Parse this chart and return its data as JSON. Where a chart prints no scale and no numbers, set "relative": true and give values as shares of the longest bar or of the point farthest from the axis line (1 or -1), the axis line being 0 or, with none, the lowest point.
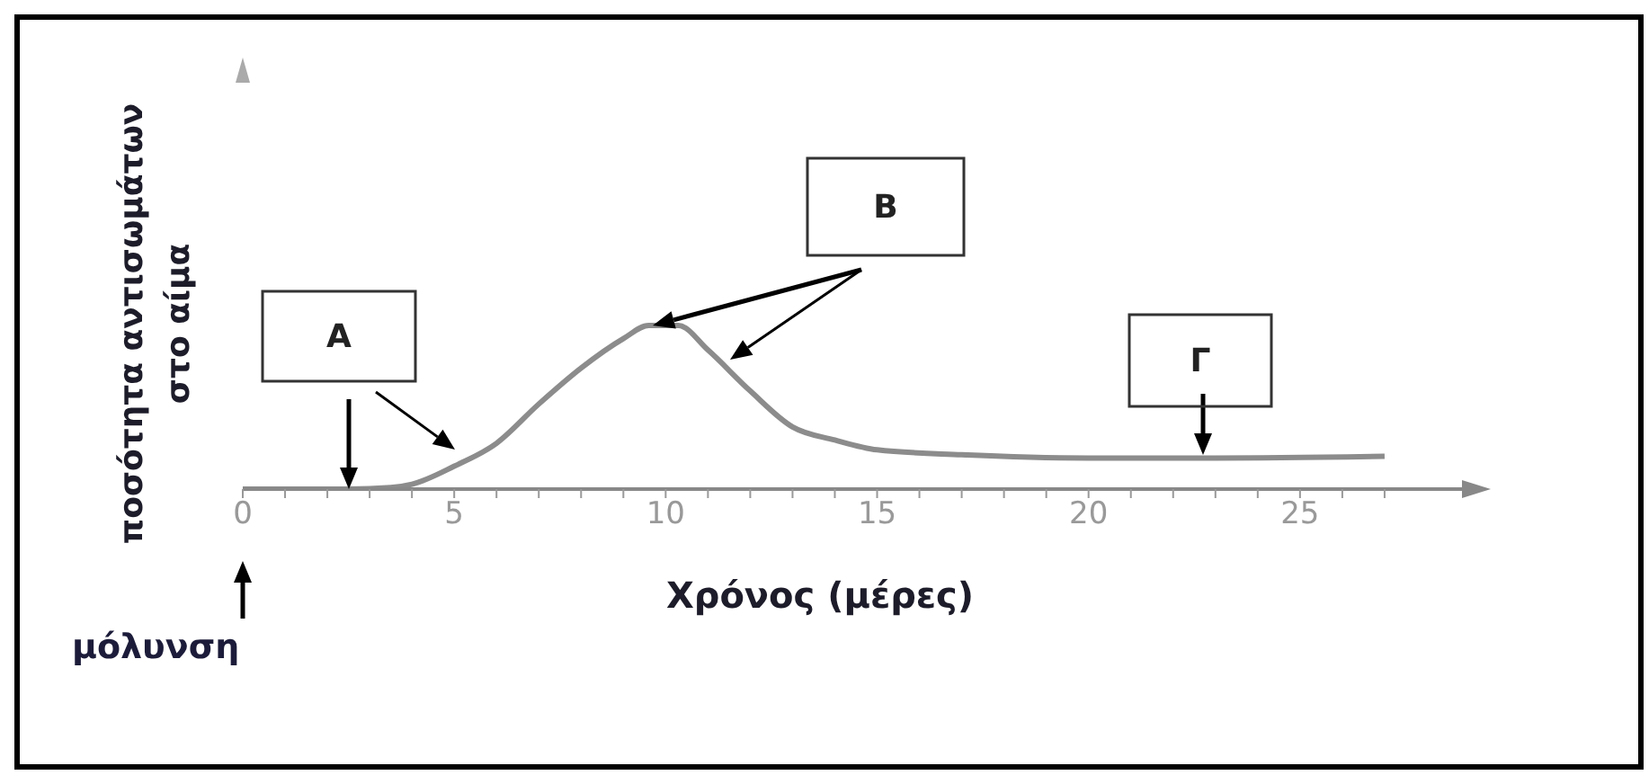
{
  "chart_data": {
    "type": "line",
    "relative": true,
    "marker": "none",
    "line_style": "solid",
    "xlabel": "Χρόνος (μέρες)",
    "ylabel": "ποσότητα αντισωμάτων στο αίμα",
    "xlim": [
      0,
      29
    ],
    "xticks": [
      0,
      {
        "value": 1,
        "label": null
      },
      {
        "value": 2,
        "label": null
      },
      {
        "value": 3,
        "label": null
      },
      {
        "value": 4,
        "label": null
      },
      5,
      {
        "value": 6,
        "label": null
      },
      {
        "value": 7,
        "label": null
      },
      {
        "value": 8,
        "label": null
      },
      {
        "value": 9,
        "label": null
      },
      10,
      {
        "value": 11,
        "label": null
      },
      {
        "value": 12,
        "label": null
      },
      {
        "value": 13,
        "label": null
      },
      {
        "value": 14,
        "label": null
      },
      15,
      {
        "value": 16,
        "label": null
      },
      {
        "value": 17,
        "label": null
      },
      {
        "value": 18,
        "label": null
      },
      {
        "value": 19,
        "label": null
      },
      20,
      {
        "value": 21,
        "label": null
      },
      {
        "value": 22,
        "label": null
      },
      {
        "value": 23,
        "label": null
      },
      {
        "value": 24,
        "label": null
      },
      25,
      {
        "value": 26,
        "label": null
      },
      {
        "value": 27,
        "label": null
      }
    ],
    "x": [
      0,
      2.5,
      3.5,
      4,
      5,
      6,
      7,
      8,
      9,
      9.6,
      10.3,
      11,
      12,
      13,
      14,
      15,
      17,
      20,
      23,
      27
    ],
    "series": [
      {
        "color": "#8c8c8c",
        "values": [
          0,
          0,
          0.01,
          0.03,
          0.14,
          0.28,
          0.52,
          0.74,
          0.92,
          1,
          1,
          0.85,
          0.6,
          0.38,
          0.3,
          0.24,
          0.21,
          0.19,
          0.19,
          0.2
        ]
      }
    ],
    "annotations": [
      "A",
      "B",
      "Γ",
      "μόλυνση"
    ]
  }
}
